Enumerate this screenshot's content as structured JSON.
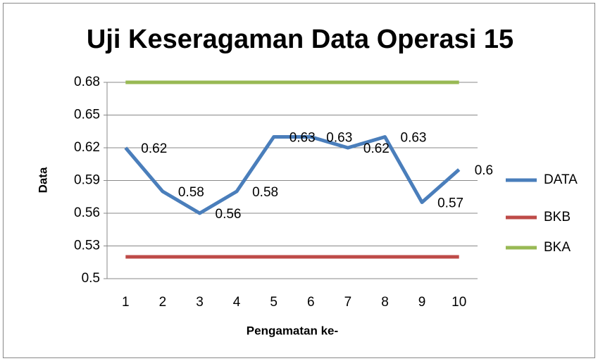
{
  "chart_data": {
    "type": "line",
    "title": "Uji Keseragaman Data Operasi 15",
    "x_label": "Pengamatan ke-",
    "y_label": "Data",
    "categories": [
      "1",
      "2",
      "3",
      "4",
      "5",
      "6",
      "7",
      "8",
      "9",
      "10"
    ],
    "series": [
      {
        "name": "DATA",
        "color": "#4a7ebb",
        "values": [
          0.62,
          0.58,
          0.56,
          0.58,
          0.63,
          0.63,
          0.62,
          0.63,
          0.57,
          0.6
        ],
        "data_labels": true
      },
      {
        "name": "BKB",
        "color": "#be4b48",
        "values": [
          0.52,
          0.52,
          0.52,
          0.52,
          0.52,
          0.52,
          0.52,
          0.52,
          0.52,
          0.52
        ]
      },
      {
        "name": "BKA",
        "color": "#98b954",
        "values": [
          0.68,
          0.68,
          0.68,
          0.68,
          0.68,
          0.68,
          0.68,
          0.68,
          0.68,
          0.68
        ]
      }
    ],
    "ylim": [
      0.5,
      0.68
    ],
    "yticks": [
      0.5,
      0.53,
      0.56,
      0.59,
      0.62,
      0.65,
      0.68
    ],
    "grid": true,
    "legend": "right"
  }
}
